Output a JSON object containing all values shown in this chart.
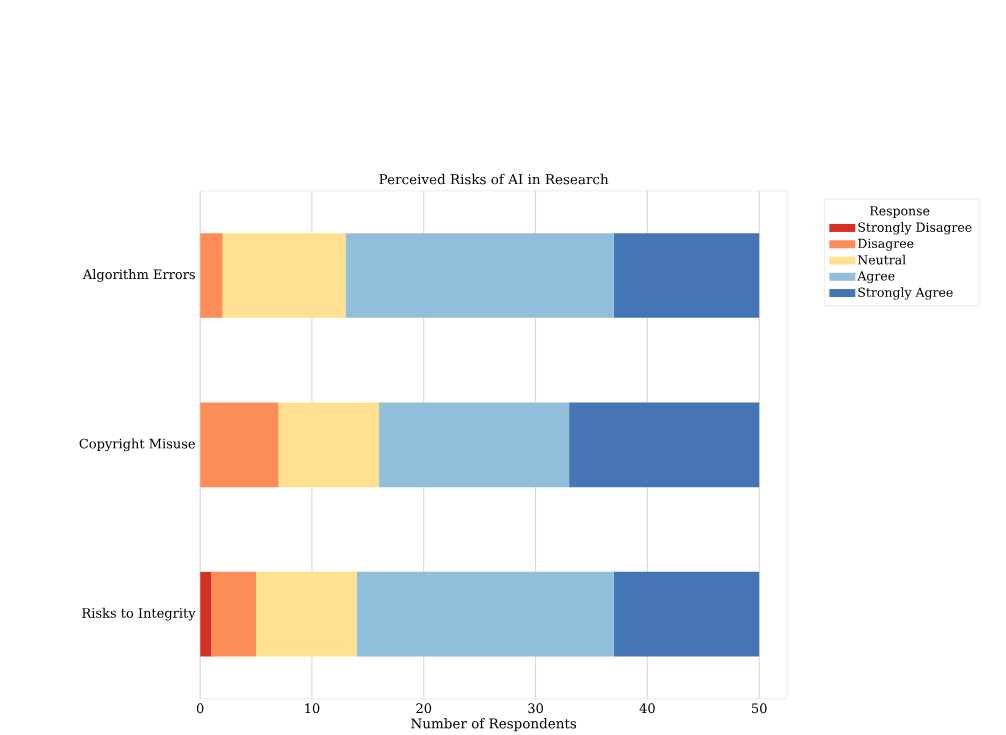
{
  "chart_data": {
    "type": "bar",
    "orientation": "horizontal",
    "stacked": true,
    "title": "Perceived Risks of AI in Research",
    "xlabel": "Number of Respondents",
    "legend_title": "Response",
    "categories": [
      "Algorithm Errors",
      "Copyright Misuse",
      "Risks to Integrity"
    ],
    "series": [
      {
        "name": "Strongly Disagree",
        "color": "#d73027",
        "values": [
          0,
          0,
          1
        ]
      },
      {
        "name": "Disagree",
        "color": "#fc8d59",
        "values": [
          2,
          7,
          4
        ]
      },
      {
        "name": "Neutral",
        "color": "#fee090",
        "values": [
          11,
          9,
          9
        ]
      },
      {
        "name": "Agree",
        "color": "#91bfdb",
        "values": [
          24,
          17,
          23
        ]
      },
      {
        "name": "Strongly Agree",
        "color": "#4575b4",
        "values": [
          13,
          17,
          13
        ]
      }
    ],
    "xlim": [
      0,
      52.5
    ],
    "xticks": [
      0,
      10,
      20,
      30,
      40,
      50
    ],
    "grid": "x",
    "legend": "top right"
  }
}
